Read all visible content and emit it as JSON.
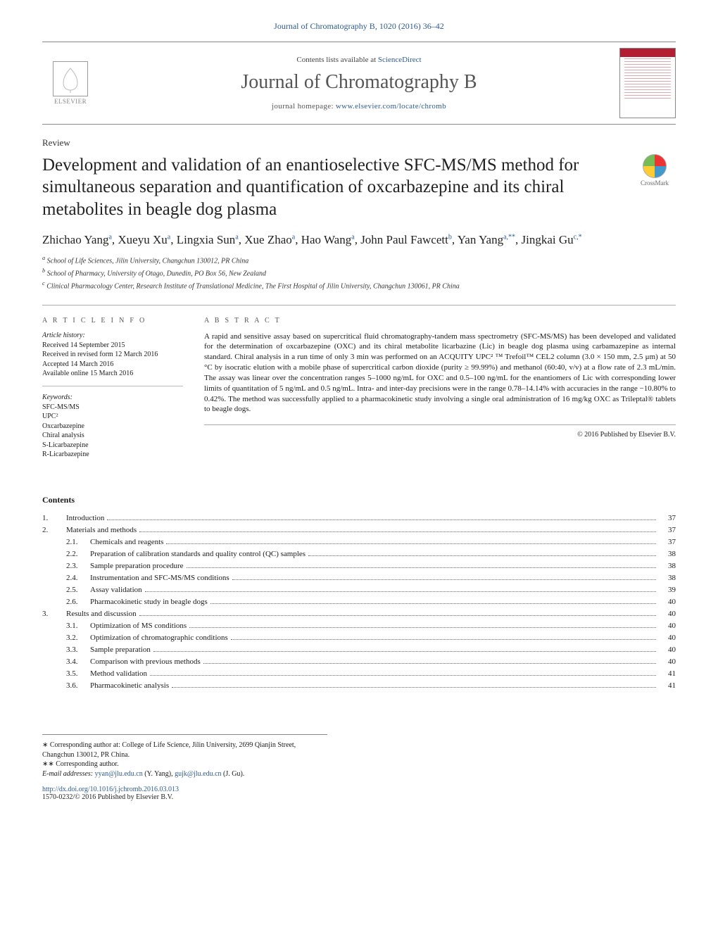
{
  "journal_ref": "Journal of Chromatography B, 1020 (2016) 36–42",
  "header": {
    "contents_prefix": "Contents lists available at ",
    "contents_link": "ScienceDirect",
    "journal_name": "Journal of Chromatography B",
    "homepage_prefix": "journal homepage: ",
    "homepage_url": "www.elsevier.com/locate/chromb",
    "publisher_word": "ELSEVIER"
  },
  "article_type": "Review",
  "title": "Development and validation of an enantioselective SFC-MS/MS method for simultaneous separation and quantification of oxcarbazepine and its chiral metabolites in beagle dog plasma",
  "crossmark": "CrossMark",
  "authors_html": "Zhichao Yang<sup>a</sup>, Xueyu Xu<sup>a</sup>, Lingxia Sun<sup>a</sup>, Xue Zhao<sup>a</sup>, Hao Wang<sup>a</sup>, John Paul Fawcett<sup>b</sup>, Yan Yang<sup>a,**</sup>, Jingkai Gu<sup>c,*</sup>",
  "affiliations": [
    "a School of Life Sciences, Jilin University, Changchun 130012, PR China",
    "b School of Pharmacy, University of Otago, Dunedin, PO Box 56, New Zealand",
    "c Clinical Pharmacology Center, Research Institute of Translational Medicine, The First Hospital of Jilin University, Changchun 130061, PR China"
  ],
  "info": {
    "heading": "a r t i c l e   i n f o",
    "history_label": "Article history:",
    "history": [
      "Received 14 September 2015",
      "Received in revised form 12 March 2016",
      "Accepted 14 March 2016",
      "Available online 15 March 2016"
    ],
    "keywords_label": "Keywords:",
    "keywords": [
      "SFC-MS/MS",
      "UPC²",
      "Oxcarbazepine",
      "Chiral analysis",
      "S-Licarbazepine",
      "R-Licarbazepine"
    ]
  },
  "abstract": {
    "heading": "a b s t r a c t",
    "text": "A rapid and sensitive assay based on supercritical fluid chromatography-tandem mass spectrometry (SFC-MS/MS) has been developed and validated for the determination of oxcarbazepine (OXC) and its chiral metabolite licarbazine (Lic) in beagle dog plasma using carbamazepine as internal standard. Chiral analysis in a run time of only 3 min was performed on an ACQUITY UPC² ™ Trefoil™ CEL2 column (3.0 × 150 mm, 2.5 μm) at 50 °C by isocratic elution with a mobile phase of supercritical carbon dioxide (purity ≥ 99.99%) and methanol (60:40, v/v) at a flow rate of 2.3 mL/min. The assay was linear over the concentration ranges 5–1000 ng/mL for OXC and 0.5–100 ng/mL for the enantiomers of Lic with corresponding lower limits of quantitation of 5 ng/mL and 0.5 ng/mL. Intra- and inter-day precisions were in the range 0.78–14.14% with accuracies in the range −10.80% to 0.42%. The method was successfully applied to a pharmacokinetic study involving a single oral administration of 16 mg/kg OXC as Trileptal® tablets to beagle dogs.",
    "copyright": "© 2016 Published by Elsevier B.V."
  },
  "contents": {
    "heading": "Contents",
    "items": [
      {
        "num": "1.",
        "label": "Introduction",
        "page": "37",
        "level": 1
      },
      {
        "num": "2.",
        "label": "Materials and methods",
        "page": "37",
        "level": 1
      },
      {
        "num": "2.1.",
        "label": "Chemicals and reagents",
        "page": "37",
        "level": 2
      },
      {
        "num": "2.2.",
        "label": "Preparation of calibration standards and quality control (QC) samples",
        "page": "38",
        "level": 2
      },
      {
        "num": "2.3.",
        "label": "Sample preparation procedure",
        "page": "38",
        "level": 2
      },
      {
        "num": "2.4.",
        "label": "Instrumentation and SFC-MS/MS conditions",
        "page": "38",
        "level": 2
      },
      {
        "num": "2.5.",
        "label": "Assay validation",
        "page": "39",
        "level": 2
      },
      {
        "num": "2.6.",
        "label": "Pharmacokinetic study in beagle dogs",
        "page": "40",
        "level": 2
      },
      {
        "num": "3.",
        "label": "Results and discussion",
        "page": "40",
        "level": 1
      },
      {
        "num": "3.1.",
        "label": "Optimization of MS conditions",
        "page": "40",
        "level": 2
      },
      {
        "num": "3.2.",
        "label": "Optimization of chromatographic conditions",
        "page": "40",
        "level": 2
      },
      {
        "num": "3.3.",
        "label": "Sample preparation",
        "page": "40",
        "level": 2
      },
      {
        "num": "3.4.",
        "label": "Comparison with previous methods",
        "page": "40",
        "level": 2
      },
      {
        "num": "3.5.",
        "label": "Method validation",
        "page": "41",
        "level": 2
      },
      {
        "num": "3.6.",
        "label": "Pharmacokinetic analysis",
        "page": "41",
        "level": 2
      }
    ]
  },
  "footnotes": {
    "corr1": "∗ Corresponding author at: College of Life Science, Jilin University, 2699 Qianjin Street, Changchun 130012, PR China.",
    "corr2": "∗∗ Corresponding author.",
    "email_label": "E-mail addresses: ",
    "email1": "yyan@jlu.edu.cn",
    "email1_who": " (Y. Yang), ",
    "email2": "gujk@jlu.edu.cn",
    "email2_who": " (J. Gu)."
  },
  "doi": "http://dx.doi.org/10.1016/j.jchromb.2016.03.013",
  "issn_line": "1570-0232/© 2016 Published by Elsevier B.V.",
  "colors": {
    "link": "#2d5a8e",
    "text": "#1a1a1a",
    "rule": "#888888",
    "cover_accent": "#b31e32"
  },
  "typography": {
    "title_pt": 25,
    "journal_name_pt": 28,
    "body_pt": 11,
    "small_pt": 10
  }
}
